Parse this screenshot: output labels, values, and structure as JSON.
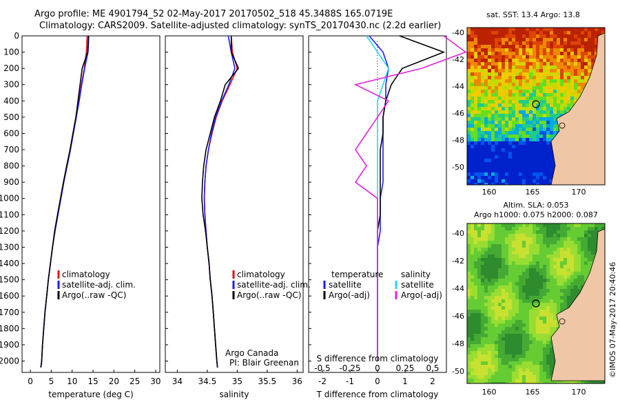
{
  "header": {
    "line1": "Argo profile: ME 4901794_52 02-May-2017 20170502_518 45.3488S 165.0719E",
    "line2": "Climatology: CARS2009. Satellite-adjusted climatology: synTS_20170430.nc (2.2d earlier)"
  },
  "map_top_title": "sat. SST: 13.4  Argo: 13.8",
  "map_bottom_title1": "Altim. SLA: 0.053",
  "map_bottom_title2": "Argo h1000: 0.075 h2000: 0.087",
  "side_stamp": "©IMOS 07-May-2017 20:40:46",
  "credit": {
    "line1": "Argo Canada",
    "line2": "PI: Blair Greenan"
  },
  "legend_clim": {
    "climatology": "climatology",
    "satellite": "satellite-adj. clim.",
    "argo": "Argo(..raw -QC)"
  },
  "legend_diff": {
    "temp_head": "temperature",
    "sal_head": "salinity",
    "satellite": "satellite",
    "argo": "Argo(-adj)"
  },
  "colors": {
    "clim": "#e01010",
    "sat": "#1a1aff",
    "argo": "#000000",
    "sat_s": "#20d8e8",
    "argo_s": "#e020e0"
  },
  "map_ticks": {
    "lon": [
      "160",
      "165",
      "170"
    ],
    "lat": [
      "-40",
      "-42",
      "-44",
      "-46",
      "-48",
      "-50"
    ]
  },
  "chart_data": [
    {
      "type": "line",
      "xlabel": "temperature (deg C)",
      "ylabel": "",
      "xticks": [
        "0",
        "5",
        "10",
        "15",
        "20",
        "25",
        "30"
      ],
      "xlim": [
        -2,
        31
      ],
      "ylim": [
        2070,
        0
      ],
      "yticks": [
        "0",
        "100",
        "200",
        "300",
        "400",
        "500",
        "600",
        "700",
        "800",
        "900",
        "1000",
        "1100",
        "1200",
        "1300",
        "1400",
        "1500",
        "1600",
        "1700",
        "1800",
        "1900",
        "2000"
      ],
      "series": [
        {
          "name": "climatology",
          "x": [
            13.6,
            13.4,
            12.9,
            12.2,
            11.6,
            10.9,
            10.2,
            9.5,
            8.7,
            8.0,
            7.3,
            6.6,
            5.9,
            5.3,
            4.8,
            4.3,
            3.9,
            3.5,
            3.2,
            2.9,
            2.7,
            2.5
          ],
          "y": [
            0,
            100,
            200,
            300,
            400,
            500,
            600,
            700,
            800,
            900,
            1000,
            1100,
            1200,
            1300,
            1400,
            1500,
            1600,
            1700,
            1800,
            1900,
            2000,
            2040
          ]
        },
        {
          "name": "satellite-adj. clim.",
          "x": [
            14.0,
            13.8,
            13.0,
            12.3,
            11.7,
            11.0,
            10.3,
            9.6,
            8.8,
            8.0,
            7.3,
            6.6,
            5.9,
            5.3,
            4.8,
            4.3,
            3.9,
            3.5,
            3.2,
            2.9,
            2.7,
            2.5
          ],
          "y": [
            0,
            100,
            200,
            300,
            400,
            500,
            600,
            700,
            800,
            900,
            1000,
            1100,
            1200,
            1300,
            1400,
            1500,
            1600,
            1700,
            1800,
            1900,
            2000,
            2040
          ]
        },
        {
          "name": "Argo(..raw -QC)",
          "x": [
            13.9,
            13.7,
            12.4,
            11.9,
            11.4,
            10.9,
            10.2,
            9.5,
            8.7,
            7.9,
            7.2,
            6.5,
            5.8,
            5.3,
            4.8,
            4.3,
            3.9,
            3.5,
            3.2,
            2.9,
            2.7,
            2.5
          ],
          "y": [
            0,
            100,
            200,
            300,
            400,
            500,
            600,
            700,
            800,
            900,
            1000,
            1100,
            1200,
            1300,
            1400,
            1500,
            1600,
            1700,
            1800,
            1900,
            2000,
            2040
          ]
        }
      ]
    },
    {
      "type": "line",
      "xlabel": "salinity",
      "ylabel": "",
      "xticks": [
        "34",
        "34.5",
        "35",
        "35.5",
        "36"
      ],
      "xlim": [
        33.8,
        36.1
      ],
      "ylim": [
        2070,
        0
      ],
      "series": [
        {
          "name": "climatology",
          "x": [
            34.9,
            34.92,
            35.0,
            34.88,
            34.75,
            34.65,
            34.58,
            34.52,
            34.48,
            34.46,
            34.45,
            34.46,
            34.48,
            34.5,
            34.53,
            34.55,
            34.58,
            34.6,
            34.62,
            34.64,
            34.66,
            34.67
          ],
          "y": [
            0,
            100,
            200,
            300,
            400,
            500,
            600,
            700,
            800,
            900,
            1000,
            1100,
            1200,
            1300,
            1400,
            1500,
            1600,
            1700,
            1800,
            1900,
            2000,
            2040
          ]
        },
        {
          "name": "satellite-adj. clim.",
          "x": [
            34.85,
            34.9,
            34.96,
            34.86,
            34.74,
            34.64,
            34.57,
            34.52,
            34.48,
            34.46,
            34.45,
            34.46,
            34.48,
            34.5,
            34.53,
            34.55,
            34.58,
            34.6,
            34.62,
            34.64,
            34.66,
            34.67
          ],
          "y": [
            0,
            100,
            200,
            300,
            400,
            500,
            600,
            700,
            800,
            900,
            1000,
            1100,
            1200,
            1300,
            1400,
            1500,
            1600,
            1700,
            1800,
            1900,
            2000,
            2040
          ]
        },
        {
          "name": "Argo(..raw -QC)",
          "x": [
            34.9,
            34.9,
            35.02,
            34.8,
            34.72,
            34.62,
            34.55,
            34.48,
            34.44,
            34.42,
            34.41,
            34.43,
            34.47,
            34.5,
            34.53,
            34.55,
            34.58,
            34.6,
            34.62,
            34.64,
            34.66,
            34.67
          ],
          "y": [
            0,
            100,
            200,
            300,
            400,
            500,
            600,
            700,
            800,
            900,
            1000,
            1100,
            1200,
            1300,
            1400,
            1500,
            1600,
            1700,
            1800,
            1900,
            2000,
            2040
          ]
        }
      ]
    },
    {
      "type": "line",
      "xlabel": "T difference from climatology",
      "title": "S difference from climatology",
      "xticks": [
        "-2",
        "-1",
        "0",
        "1",
        "2"
      ],
      "sticks": [
        "-0.5",
        "-0.25",
        "0",
        "0.25",
        "0.5"
      ],
      "xlim": [
        -2.5,
        2.5
      ],
      "ylim": [
        2070,
        0
      ],
      "series": [
        {
          "name": "satellite",
          "x": [
            -0.3,
            0.2,
            0.4,
            0.3,
            0.3,
            0.2,
            0.2,
            0.2,
            0.2,
            0.2,
            0.1,
            0.1,
            0.1,
            0.0,
            0.0,
            0.0,
            0.0,
            0.0,
            0.0,
            0.0,
            0.0
          ],
          "y": [
            0,
            100,
            200,
            300,
            400,
            500,
            600,
            700,
            800,
            900,
            1000,
            1100,
            1200,
            1300,
            1400,
            1500,
            1600,
            1700,
            1800,
            1900,
            2000
          ]
        },
        {
          "name": "Argo(-adj)",
          "x": [
            0.8,
            2.4,
            0.9,
            0.5,
            0.3,
            0.2,
            0.2,
            0.1,
            0.1,
            0.1,
            0.1,
            0.1,
            0.0,
            0.0,
            0.0,
            0.0,
            0.0,
            0.0,
            0.0,
            0.0,
            0.0
          ],
          "y": [
            0,
            100,
            200,
            300,
            400,
            500,
            600,
            700,
            800,
            900,
            1000,
            1100,
            1200,
            1300,
            1400,
            1500,
            1600,
            1700,
            1800,
            1900,
            2000
          ]
        },
        {
          "name": "satellite (S)",
          "x": [
            -0.1,
            0.0,
            0.1,
            0.05,
            0.0,
            0.0,
            0.0,
            0.0,
            0.0,
            0.0,
            0.0,
            0.0,
            0.0,
            0.0,
            0.0,
            0.0,
            0.0,
            0.0,
            0.0,
            0.0,
            0.0
          ],
          "y": [
            0,
            100,
            200,
            300,
            400,
            500,
            600,
            700,
            800,
            900,
            1000,
            1100,
            1200,
            1300,
            1400,
            1500,
            1600,
            1700,
            1800,
            1900,
            2000
          ]
        },
        {
          "name": "Argo(-adj) (S)",
          "x": [
            0.6,
            0.8,
            0.4,
            -0.2,
            0.1,
            0.0,
            -0.1,
            -0.2,
            -0.1,
            -0.2,
            0.0,
            0.0,
            0.0,
            0.0,
            0.0,
            0.0,
            0.0,
            0.0,
            0.0,
            0.0,
            0.0
          ],
          "y": [
            0,
            100,
            200,
            300,
            400,
            500,
            600,
            700,
            800,
            900,
            1000,
            1100,
            1200,
            1300,
            1400,
            1500,
            1600,
            1700,
            1800,
            1900,
            2000
          ]
        }
      ]
    }
  ]
}
